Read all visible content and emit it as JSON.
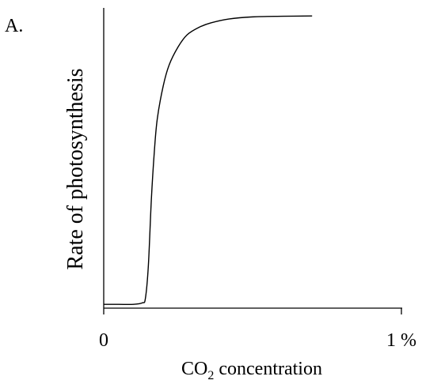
{
  "panel_label": "A.",
  "chart_data": {
    "type": "line",
    "title": "",
    "xlabel": "CO2 concentration",
    "xlabel_parts": {
      "base": "CO",
      "subscript": "2",
      "rest": " concentration"
    },
    "ylabel": "Rate of photosynthesis",
    "x_tick_labels": [
      "0",
      "1 %"
    ],
    "xlim": [
      0,
      1
    ],
    "ylim": [
      0,
      1
    ],
    "grid": false,
    "series": [
      {
        "x": [
          0,
          0.05,
          0.1,
          0.13,
          0.14,
          0.15,
          0.16,
          0.17,
          0.18,
          0.2,
          0.22,
          0.25,
          0.28,
          0.32,
          0.36,
          0.42,
          0.5,
          0.6,
          0.7
        ],
        "y": [
          0.01,
          0.01,
          0.01,
          0.015,
          0.03,
          0.14,
          0.36,
          0.52,
          0.63,
          0.74,
          0.81,
          0.87,
          0.91,
          0.935,
          0.95,
          0.963,
          0.97,
          0.972,
          0.973
        ]
      }
    ],
    "colors": {
      "axis": "#000000",
      "line": "#000000"
    }
  }
}
